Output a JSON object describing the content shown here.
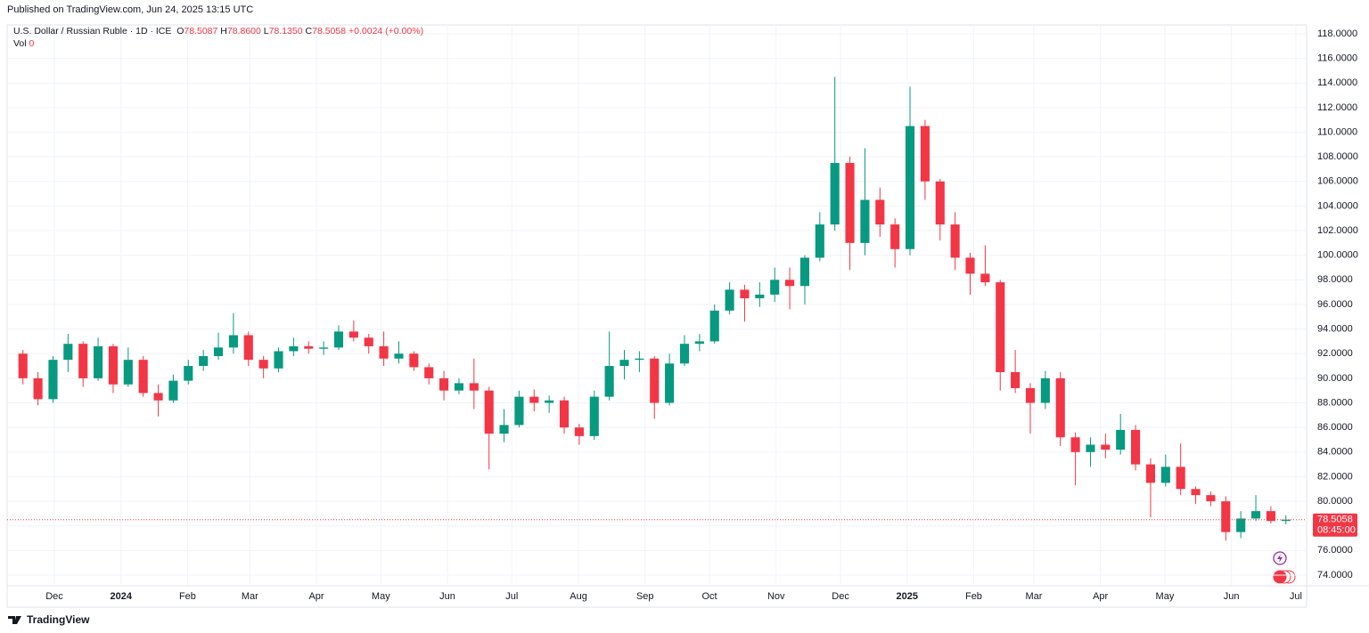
{
  "header": {
    "published": "Published on TradingView.com, Jun 24, 2025 13:15 UTC"
  },
  "legend": {
    "symbol": "U.S. Dollar / Russian Ruble · 1D · ICE",
    "open_label": "O",
    "open": "78.5087",
    "high_label": "H",
    "high": "78.8600",
    "low_label": "L",
    "low": "78.1350",
    "close_label": "C",
    "close": "78.5058",
    "change": "+0.0024 (+0.00%)",
    "vol_label": "Vol",
    "vol": "0"
  },
  "chart_data": {
    "type": "candlestick",
    "x": [
      "2023-11-13",
      "2023-11-20",
      "2023-11-27",
      "2023-12-04",
      "2023-12-11",
      "2023-12-18",
      "2023-12-25",
      "2024-01-01",
      "2024-01-08",
      "2024-01-15",
      "2024-01-22",
      "2024-01-29",
      "2024-02-05",
      "2024-02-12",
      "2024-02-19",
      "2024-02-26",
      "2024-03-04",
      "2024-03-11",
      "2024-03-18",
      "2024-03-25",
      "2024-04-01",
      "2024-04-08",
      "2024-04-15",
      "2024-04-22",
      "2024-04-29",
      "2024-05-06",
      "2024-05-13",
      "2024-05-20",
      "2024-05-27",
      "2024-06-03",
      "2024-06-10",
      "2024-06-17",
      "2024-06-24",
      "2024-07-01",
      "2024-07-08",
      "2024-07-15",
      "2024-07-22",
      "2024-07-29",
      "2024-08-05",
      "2024-08-12",
      "2024-08-19",
      "2024-08-26",
      "2024-09-02",
      "2024-09-09",
      "2024-09-16",
      "2024-09-23",
      "2024-09-30",
      "2024-10-07",
      "2024-10-14",
      "2024-10-21",
      "2024-10-28",
      "2024-11-04",
      "2024-11-11",
      "2024-11-18",
      "2024-11-25",
      "2024-12-02",
      "2024-12-09",
      "2024-12-16",
      "2024-12-23",
      "2024-12-30",
      "2025-01-06",
      "2025-01-13",
      "2025-01-20",
      "2025-01-27",
      "2025-02-03",
      "2025-02-10",
      "2025-02-17",
      "2025-02-24",
      "2025-03-03",
      "2025-03-10",
      "2025-03-17",
      "2025-03-24",
      "2025-03-31",
      "2025-04-07",
      "2025-04-14",
      "2025-04-21",
      "2025-04-28",
      "2025-05-05",
      "2025-05-12",
      "2025-05-19",
      "2025-05-26",
      "2025-06-02",
      "2025-06-09",
      "2025-06-16",
      "2025-06-23"
    ],
    "open": [
      92,
      90,
      88.3,
      91.5,
      92.8,
      90,
      92.6,
      89.5,
      91.5,
      88.8,
      88.2,
      89.8,
      91,
      91.8,
      92.5,
      93.5,
      91.5,
      90.8,
      92.2,
      92.6,
      92.4,
      92.5,
      93.8,
      93.3,
      92.6,
      91.6,
      92,
      90.9,
      90,
      89,
      89.6,
      89,
      85.5,
      86.2,
      88.5,
      88,
      88.2,
      86,
      85.3,
      88.5,
      91,
      91.5,
      91.6,
      88,
      91.2,
      92.8,
      93,
      95.5,
      97.2,
      96.5,
      96.8,
      98,
      97.5,
      99.8,
      102.5,
      107.5,
      101,
      104.5,
      102.5,
      100.5,
      110.5,
      106,
      102.5,
      99.8,
      98.5,
      97.8,
      90.5,
      89.2,
      88,
      90,
      85.2,
      84,
      84.6,
      84.2,
      85.8,
      83,
      81.5,
      82.8,
      81,
      80.5,
      80,
      77.5,
      78.6,
      79.2,
      78.4
    ],
    "high": [
      92.3,
      90.5,
      91.8,
      93.6,
      93,
      93.3,
      92.8,
      92.5,
      91.8,
      89.5,
      90.3,
      91.5,
      92.3,
      93.7,
      95.3,
      93.8,
      91.8,
      92.5,
      93.3,
      93,
      93,
      94.3,
      94.7,
      93.6,
      93.8,
      93,
      92.2,
      91.2,
      90.6,
      90,
      91.6,
      89.3,
      87.5,
      89,
      89.1,
      88.6,
      88.5,
      86.3,
      89,
      93.8,
      92.3,
      92.2,
      91.8,
      92,
      93.5,
      93.6,
      96,
      97.8,
      97.6,
      97.8,
      99,
      99,
      100,
      103.5,
      114.5,
      108,
      108.7,
      105.5,
      103,
      113.7,
      111,
      106.2,
      103.5,
      100.2,
      100.8,
      98,
      92.3,
      89.6,
      90.6,
      90.5,
      85.6,
      85.2,
      85.5,
      87.1,
      86.2,
      83.5,
      83.8,
      84.7,
      81.2,
      80.8,
      80.4,
      79.2,
      80.5,
      79.6,
      78.86
    ],
    "low": [
      89.5,
      87.8,
      88,
      90.5,
      89.3,
      89.8,
      88.8,
      89.3,
      88.5,
      86.9,
      88,
      89.5,
      90.6,
      91.5,
      92,
      91,
      90,
      90.5,
      91.8,
      92,
      91.9,
      92.3,
      93,
      92,
      91,
      91.2,
      90.6,
      89.5,
      88.2,
      88.7,
      87.5,
      82.6,
      84.8,
      86,
      87.3,
      87.2,
      85.5,
      84.6,
      85,
      88.2,
      89.9,
      90.5,
      86.7,
      87.8,
      91,
      92.2,
      92.8,
      95.2,
      94.6,
      95.8,
      96.2,
      95.6,
      96,
      99.5,
      102,
      98.8,
      100,
      101.5,
      99,
      100,
      104.5,
      101.2,
      98.8,
      96.8,
      97.5,
      89,
      88.8,
      85.5,
      87.5,
      84.5,
      81.3,
      82.8,
      83.5,
      83.8,
      82.5,
      78.7,
      81.2,
      80.5,
      79.8,
      79.6,
      76.8,
      77,
      78.4,
      78.2,
      78.135
    ],
    "close": [
      90,
      88.3,
      91.5,
      92.8,
      90,
      92.6,
      89.5,
      91.5,
      88.8,
      88.2,
      89.8,
      91,
      91.8,
      92.5,
      93.5,
      91.5,
      90.8,
      92.2,
      92.6,
      92.4,
      92.5,
      93.8,
      93.3,
      92.6,
      91.6,
      92,
      90.9,
      90,
      89,
      89.6,
      89,
      85.5,
      86.2,
      88.5,
      88,
      88.2,
      86,
      85.3,
      88.5,
      91,
      91.5,
      91.6,
      88,
      91.2,
      92.8,
      93,
      95.5,
      97.2,
      96.5,
      96.8,
      98,
      97.5,
      99.8,
      102.5,
      107.5,
      101,
      104.5,
      102.5,
      100.5,
      110.5,
      106,
      102.5,
      99.8,
      98.5,
      97.8,
      90.5,
      89.2,
      88,
      90,
      85.2,
      84,
      84.6,
      84.2,
      85.8,
      83,
      81.5,
      82.8,
      81,
      80.5,
      80,
      77.5,
      78.6,
      79.2,
      78.4,
      78.5058
    ],
    "up_color": "#089981",
    "down_color": "#f23645",
    "xlim": [
      "2023-11-09",
      "2025-07-06"
    ],
    "ylim": [
      73.13,
      118.72
    ],
    "xticks": [
      {
        "value": "2023-12-01",
        "label": "Dec"
      },
      {
        "value": "2024-01-01",
        "label": "2024"
      },
      {
        "value": "2024-02-01",
        "label": "Feb"
      },
      {
        "value": "2024-03-01",
        "label": "Mar"
      },
      {
        "value": "2024-04-01",
        "label": "Apr"
      },
      {
        "value": "2024-05-01",
        "label": "May"
      },
      {
        "value": "2024-06-01",
        "label": "Jun"
      },
      {
        "value": "2024-07-01",
        "label": "Jul"
      },
      {
        "value": "2024-08-01",
        "label": "Aug"
      },
      {
        "value": "2024-09-01",
        "label": "Sep"
      },
      {
        "value": "2024-10-01",
        "label": "Oct"
      },
      {
        "value": "2024-11-01",
        "label": "Nov"
      },
      {
        "value": "2024-12-01",
        "label": "Dec"
      },
      {
        "value": "2025-01-01",
        "label": "2025"
      },
      {
        "value": "2025-02-01",
        "label": "Feb"
      },
      {
        "value": "2025-03-01",
        "label": "Mar"
      },
      {
        "value": "2025-04-01",
        "label": "Apr"
      },
      {
        "value": "2025-05-01",
        "label": "May"
      },
      {
        "value": "2025-06-01",
        "label": "Jun"
      },
      {
        "value": "2025-07-01",
        "label": "Jul"
      }
    ],
    "yticks": [
      {
        "value": 74,
        "label": "74.0000"
      },
      {
        "value": 76,
        "label": "76.0000"
      },
      {
        "value": 78,
        "label": "78.0000"
      },
      {
        "value": 80,
        "label": "80.0000"
      },
      {
        "value": 82,
        "label": "82.0000"
      },
      {
        "value": 84,
        "label": "84.0000"
      },
      {
        "value": 86,
        "label": "86.0000"
      },
      {
        "value": 88,
        "label": "88.0000"
      },
      {
        "value": 90,
        "label": "90.0000"
      },
      {
        "value": 92,
        "label": "92.0000"
      },
      {
        "value": 94,
        "label": "94.0000"
      },
      {
        "value": 96,
        "label": "96.0000"
      },
      {
        "value": 98,
        "label": "98.0000"
      },
      {
        "value": 100,
        "label": "100.0000"
      },
      {
        "value": 102,
        "label": "102.0000"
      },
      {
        "value": 104,
        "label": "104.0000"
      },
      {
        "value": 106,
        "label": "106.0000"
      },
      {
        "value": 108,
        "label": "108.0000"
      },
      {
        "value": 110,
        "label": "110.0000"
      },
      {
        "value": 112,
        "label": "112.0000"
      },
      {
        "value": 114,
        "label": "114.0000"
      },
      {
        "value": 116,
        "label": "116.0000"
      },
      {
        "value": 118,
        "label": "118.0000"
      }
    ],
    "grid": true,
    "last_price": 78.5058,
    "countdown": "08:45:00"
  },
  "footer": {
    "brand": "TradingView"
  }
}
